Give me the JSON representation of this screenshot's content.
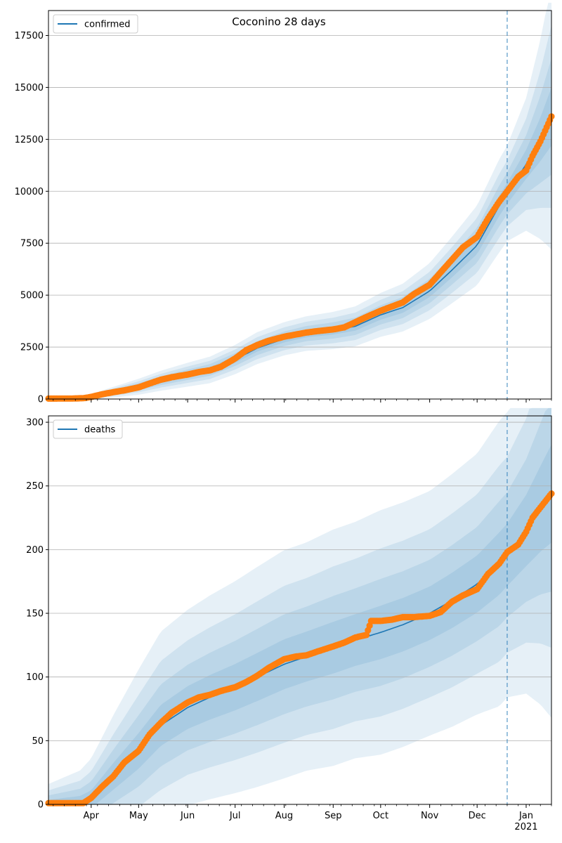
{
  "title": "Coconino 28 days",
  "colors": {
    "band": "#1f77b4",
    "model_line": "#1f77b4",
    "observed": "#ff7f0e",
    "vline": "#1f77b4",
    "grid": "#b0b0b0"
  },
  "x_axis": {
    "ticks": [
      {
        "date": "2020-04-01",
        "label": "Apr"
      },
      {
        "date": "2020-05-01",
        "label": "May"
      },
      {
        "date": "2020-06-01",
        "label": "Jun"
      },
      {
        "date": "2020-07-01",
        "label": "Jul"
      },
      {
        "date": "2020-08-01",
        "label": "Aug"
      },
      {
        "date": "2020-09-01",
        "label": "Sep"
      },
      {
        "date": "2020-10-01",
        "label": "Oct"
      },
      {
        "date": "2020-11-01",
        "label": "Nov"
      },
      {
        "date": "2020-12-01",
        "label": "Dec"
      },
      {
        "date": "2021-01-01",
        "label": "Jan\n2021"
      }
    ],
    "range": [
      "2020-03-05",
      "2021-01-17"
    ],
    "forecast_start": "2020-12-20"
  },
  "chart_data": [
    {
      "type": "line",
      "legend": "confirmed",
      "legend_position": "top-left",
      "grid": "y",
      "ylim": [
        0,
        18700
      ],
      "yticks": [
        0,
        2500,
        5000,
        7500,
        10000,
        12500,
        15000,
        17500
      ],
      "model": {
        "x": [
          "2020-03-05",
          "2020-03-25",
          "2020-04-01",
          "2020-04-15",
          "2020-05-01",
          "2020-05-15",
          "2020-06-01",
          "2020-06-15",
          "2020-07-01",
          "2020-07-15",
          "2020-08-01",
          "2020-08-15",
          "2020-09-01",
          "2020-09-15",
          "2020-10-01",
          "2020-10-15",
          "2020-11-01",
          "2020-11-15",
          "2020-12-01",
          "2020-12-15",
          "2020-12-20",
          "2021-01-01",
          "2021-01-10",
          "2021-01-17"
        ],
        "y": [
          30,
          40,
          120,
          330,
          590,
          880,
          1170,
          1400,
          1900,
          2450,
          2900,
          3150,
          3300,
          3500,
          4050,
          4400,
          5200,
          6200,
          7400,
          9300,
          9900,
          11300,
          12500,
          13600
        ],
        "spread": [
          10,
          20,
          40,
          80,
          120,
          150,
          180,
          200,
          220,
          240,
          250,
          260,
          280,
          300,
          330,
          360,
          420,
          500,
          600,
          700,
          720,
          1000,
          1500,
          2000
        ]
      },
      "observed": {
        "x": [
          "2020-03-05",
          "2020-03-20",
          "2020-03-27",
          "2020-04-01",
          "2020-04-08",
          "2020-04-15",
          "2020-04-22",
          "2020-05-01",
          "2020-05-08",
          "2020-05-15",
          "2020-05-22",
          "2020-06-01",
          "2020-06-08",
          "2020-06-15",
          "2020-06-22",
          "2020-07-01",
          "2020-07-08",
          "2020-07-15",
          "2020-07-22",
          "2020-08-01",
          "2020-08-08",
          "2020-08-15",
          "2020-08-22",
          "2020-09-01",
          "2020-09-08",
          "2020-09-15",
          "2020-09-22",
          "2020-10-01",
          "2020-10-08",
          "2020-10-15",
          "2020-10-22",
          "2020-11-01",
          "2020-11-08",
          "2020-11-15",
          "2020-11-22",
          "2020-12-01",
          "2020-12-08",
          "2020-12-15",
          "2020-12-20",
          "2020-12-27",
          "2021-01-01",
          "2021-01-05",
          "2021-01-10",
          "2021-01-17"
        ],
        "y": [
          20,
          25,
          40,
          100,
          230,
          330,
          420,
          560,
          750,
          930,
          1050,
          1180,
          1300,
          1380,
          1550,
          1950,
          2350,
          2600,
          2800,
          3000,
          3100,
          3200,
          3270,
          3350,
          3450,
          3700,
          3950,
          4250,
          4450,
          4650,
          5050,
          5500,
          6100,
          6700,
          7300,
          7800,
          8700,
          9500,
          10000,
          10700,
          11000,
          11700,
          12400,
          13600
        ]
      }
    },
    {
      "type": "line",
      "legend": "deaths",
      "legend_position": "top-left",
      "grid": "y",
      "ylim": [
        0,
        305
      ],
      "yticks": [
        0,
        50,
        100,
        150,
        200,
        250,
        300
      ],
      "model": {
        "x": [
          "2020-03-05",
          "2020-03-25",
          "2020-04-01",
          "2020-04-15",
          "2020-05-01",
          "2020-05-15",
          "2020-06-01",
          "2020-06-15",
          "2020-07-01",
          "2020-07-15",
          "2020-08-01",
          "2020-08-15",
          "2020-09-01",
          "2020-09-15",
          "2020-10-01",
          "2020-10-15",
          "2020-11-01",
          "2020-11-15",
          "2020-12-01",
          "2020-12-15",
          "2020-12-20",
          "2021-01-01",
          "2021-01-10",
          "2021-01-17"
        ],
        "y": [
          0,
          1,
          4,
          22,
          42,
          62,
          76,
          84,
          92,
          100,
          110,
          116,
          123,
          129,
          135,
          141,
          150,
          160,
          173,
          189,
          196,
          215,
          232,
          244
        ],
        "spread": [
          5,
          8,
          10,
          15,
          20,
          23,
          24,
          25,
          26,
          27,
          28,
          28,
          29,
          29,
          30,
          30,
          30,
          31,
          32,
          35,
          35,
          40,
          48,
          55
        ]
      },
      "observed": {
        "x": [
          "2020-03-05",
          "2020-03-20",
          "2020-03-27",
          "2020-04-01",
          "2020-04-08",
          "2020-04-15",
          "2020-04-22",
          "2020-05-01",
          "2020-05-08",
          "2020-05-15",
          "2020-05-22",
          "2020-06-01",
          "2020-06-08",
          "2020-06-15",
          "2020-06-22",
          "2020-07-01",
          "2020-07-08",
          "2020-07-15",
          "2020-07-22",
          "2020-08-01",
          "2020-08-08",
          "2020-08-15",
          "2020-08-22",
          "2020-09-01",
          "2020-09-08",
          "2020-09-15",
          "2020-09-22",
          "2020-09-25",
          "2020-10-01",
          "2020-10-08",
          "2020-10-15",
          "2020-10-22",
          "2020-11-01",
          "2020-11-08",
          "2020-11-15",
          "2020-11-22",
          "2020-12-01",
          "2020-12-08",
          "2020-12-15",
          "2020-12-20",
          "2020-12-27",
          "2021-01-01",
          "2021-01-05",
          "2021-01-10",
          "2021-01-17"
        ],
        "y": [
          1,
          1,
          1,
          5,
          14,
          22,
          33,
          42,
          55,
          64,
          72,
          80,
          84,
          86,
          89,
          92,
          96,
          101,
          107,
          114,
          116,
          117,
          120,
          124,
          127,
          131,
          133,
          144,
          144,
          145,
          147,
          147,
          148,
          151,
          159,
          164,
          169,
          181,
          189,
          198,
          204,
          214,
          225,
          233,
          244
        ]
      }
    }
  ]
}
